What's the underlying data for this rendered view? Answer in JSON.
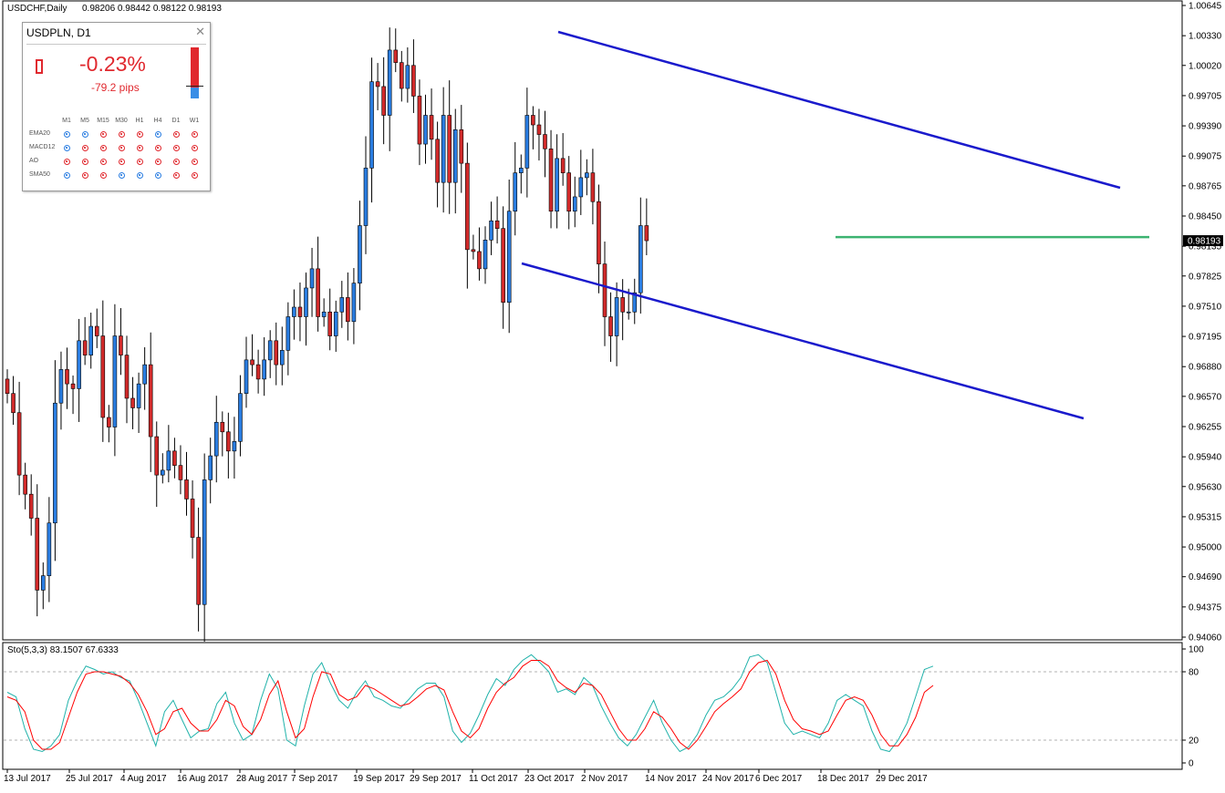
{
  "header": {
    "symbol_tf": "USDCHF,Daily",
    "ohlc": "0.98206 0.98442 0.98122 0.98193"
  },
  "widget": {
    "title": "USDPLN, D1",
    "change_pct": "-0.23%",
    "change_pips": "-79.2 pips",
    "timeframes": [
      "M1",
      "M5",
      "M15",
      "M30",
      "H1",
      "H4",
      "D1",
      "W1"
    ],
    "indicators": [
      {
        "name": "EMA20",
        "signals": [
          "buy",
          "buy",
          "sell",
          "sell",
          "sell",
          "buy",
          "sell",
          "sell"
        ]
      },
      {
        "name": "MACD12",
        "signals": [
          "buy",
          "sell",
          "sell",
          "sell",
          "sell",
          "sell",
          "sell",
          "sell"
        ]
      },
      {
        "name": "AO",
        "signals": [
          "sell",
          "sell",
          "sell",
          "sell",
          "sell",
          "sell",
          "sell",
          "sell"
        ]
      },
      {
        "name": "SMA50",
        "signals": [
          "buy",
          "sell",
          "sell",
          "buy",
          "buy",
          "buy",
          "sell",
          "sell"
        ]
      }
    ],
    "colors": {
      "up": "#2a7de1",
      "down": "#e0282e"
    }
  },
  "chart_data": {
    "type": "candlestick",
    "price_axis": {
      "ticks": [
        "1.00645",
        "1.00330",
        "1.00020",
        "0.99705",
        "0.99390",
        "0.99075",
        "0.98765",
        "0.98450",
        "0.98135",
        "0.97825",
        "0.97510",
        "0.97195",
        "0.96880",
        "0.96570",
        "0.96255",
        "0.95940",
        "0.95630",
        "0.95315",
        "0.95000",
        "0.94690",
        "0.94375",
        "0.94060"
      ],
      "range": [
        0.9406,
        1.00645
      ]
    },
    "current_price": "0.98193",
    "date_axis": [
      "13 Jul 2017",
      "25 Jul 2017",
      "4 Aug 2017",
      "16 Aug 2017",
      "28 Aug 2017",
      "7 Sep 2017",
      "19 Sep 2017",
      "29 Sep 2017",
      "11 Oct 2017",
      "23 Oct 2017",
      "2 Nov 2017",
      "14 Nov 2017",
      "24 Nov 2017",
      "6 Dec 2017",
      "18 Dec 2017",
      "29 Dec 2017"
    ],
    "close_prices": [
      0.966,
      0.964,
      0.9575,
      0.9555,
      0.953,
      0.9455,
      0.947,
      0.9525,
      0.965,
      0.9685,
      0.967,
      0.9665,
      0.9715,
      0.97,
      0.973,
      0.972,
      0.9635,
      0.9625,
      0.972,
      0.97,
      0.9655,
      0.9645,
      0.967,
      0.969,
      0.9615,
      0.9575,
      0.958,
      0.96,
      0.9585,
      0.957,
      0.955,
      0.951,
      0.944,
      0.957,
      0.9595,
      0.963,
      0.962,
      0.96,
      0.961,
      0.966,
      0.9695,
      0.969,
      0.9675,
      0.9695,
      0.9715,
      0.969,
      0.9705,
      0.974,
      0.975,
      0.974,
      0.977,
      0.979,
      0.974,
      0.9745,
      0.972,
      0.9745,
      0.976,
      0.9735,
      0.9775,
      0.9835,
      0.9895,
      0.9985,
      0.998,
      0.995,
      1.0018,
      1.0005,
      0.9978,
      1.0002,
      0.997,
      0.992,
      0.995,
      0.9925,
      0.988,
      0.995,
      0.988,
      0.9935,
      0.99,
      0.981,
      0.9808,
      0.979,
      0.982,
      0.984,
      0.9832,
      0.9755,
      0.985,
      0.989,
      0.9895,
      0.995,
      0.994,
      0.993,
      0.9915,
      0.985,
      0.9905,
      0.989,
      0.985,
      0.9865,
      0.9885,
      0.989,
      0.986,
      0.9795,
      0.974,
      0.972,
      0.976,
      0.9745,
      0.9745,
      0.9765,
      0.9835,
      0.98193
    ],
    "channel_lines": [
      {
        "name": "upper",
        "from": {
          "date": "26 Oct 2017",
          "price": 1.0035
        },
        "to": {
          "date": "20 Jan 2018",
          "price": 0.9872
        },
        "color": "#1a1acc"
      },
      {
        "name": "lower",
        "from": {
          "date": "19 Oct 2017",
          "price": 0.9795
        },
        "to": {
          "date": "18 Jan 2018",
          "price": 0.963
        },
        "color": "#1a1acc"
      }
    ],
    "horizontal_line": {
      "price": 0.9823,
      "from_date": "20 Dec 2017",
      "color": "#3cb371"
    },
    "indicator": {
      "name": "Sto(5,3,3) 83.1507 67.6333",
      "type": "line",
      "ylim": [
        0,
        100
      ],
      "ticks": [
        "100",
        "80",
        "20",
        "0"
      ],
      "levels": [
        80,
        20
      ],
      "series": [
        {
          "values": [
            62,
            58,
            30,
            12,
            10,
            15,
            25,
            55,
            72,
            85,
            82,
            78,
            80,
            75,
            72,
            55,
            35,
            15,
            45,
            55,
            38,
            22,
            28,
            30,
            52,
            62,
            35,
            20,
            25,
            55,
            78,
            65,
            20,
            15,
            50,
            78,
            88,
            70,
            55,
            48,
            62,
            72,
            58,
            55,
            50,
            48,
            56,
            65,
            70,
            70,
            58,
            28,
            18,
            26,
            42,
            60,
            74,
            68,
            82,
            90,
            95,
            88,
            80,
            62,
            65,
            60,
            75,
            68,
            50,
            35,
            22,
            15,
            25,
            40,
            55,
            35,
            20,
            10,
            14,
            25,
            42,
            55,
            58,
            65,
            75,
            93,
            95,
            88,
            62,
            35,
            25,
            28,
            25,
            22,
            35,
            55,
            60,
            55,
            50,
            28,
            12,
            10,
            20,
            35,
            58,
            82,
            85
          ],
          "color": "#20b2aa"
        },
        {
          "values": [
            58,
            55,
            45,
            20,
            12,
            12,
            18,
            40,
            62,
            78,
            80,
            80,
            78,
            76,
            70,
            60,
            45,
            25,
            30,
            45,
            48,
            35,
            28,
            28,
            38,
            55,
            50,
            32,
            25,
            38,
            60,
            72,
            45,
            22,
            30,
            58,
            80,
            78,
            60,
            55,
            58,
            68,
            65,
            60,
            55,
            50,
            52,
            58,
            65,
            68,
            64,
            45,
            28,
            22,
            30,
            48,
            62,
            70,
            75,
            85,
            90,
            90,
            85,
            72,
            66,
            62,
            70,
            68,
            60,
            45,
            30,
            20,
            20,
            30,
            45,
            40,
            30,
            18,
            12,
            20,
            32,
            45,
            52,
            58,
            65,
            80,
            88,
            90,
            78,
            55,
            38,
            30,
            28,
            25,
            28,
            42,
            55,
            58,
            55,
            42,
            25,
            15,
            15,
            25,
            40,
            62,
            68
          ],
          "color": "#ff0000"
        }
      ]
    }
  }
}
